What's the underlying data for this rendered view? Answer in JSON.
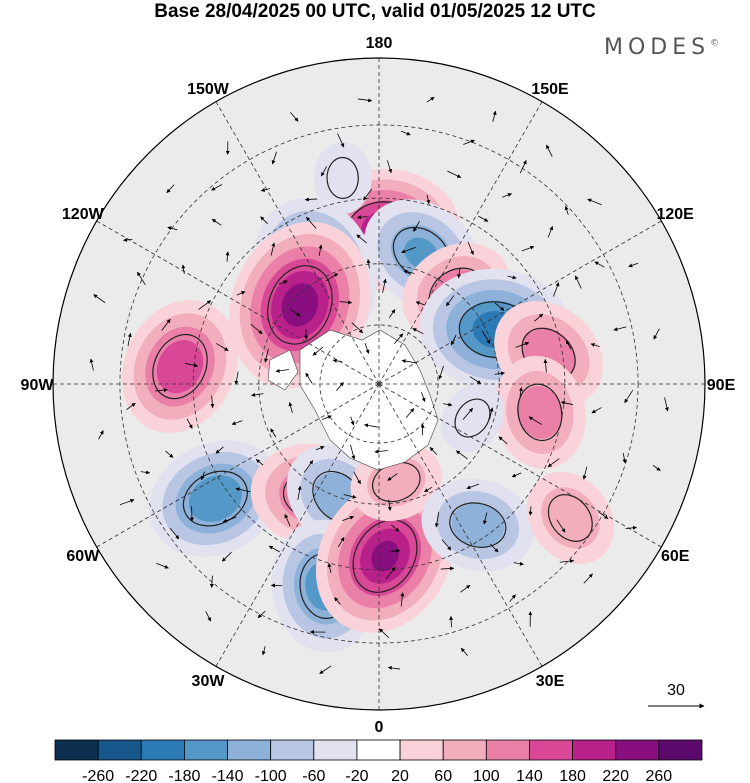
{
  "header": {
    "title": "Base 28/04/2025 00 UTC, valid 01/05/2025 12 UTC",
    "brand": "MODES",
    "brand_mark": "©"
  },
  "map": {
    "projection": "north-polar-stereographic",
    "longitude_labels": [
      {
        "text": "180",
        "lon": 180
      },
      {
        "text": "150E",
        "lon": 150
      },
      {
        "text": "120E",
        "lon": 120
      },
      {
        "text": "90E",
        "lon": 90
      },
      {
        "text": "60E",
        "lon": 60
      },
      {
        "text": "30E",
        "lon": 30
      },
      {
        "text": "0",
        "lon": 0
      },
      {
        "text": "30W",
        "lon": -30
      },
      {
        "text": "60W",
        "lon": -60
      },
      {
        "text": "90W",
        "lon": -90
      },
      {
        "text": "120W",
        "lon": -120
      },
      {
        "text": "150W",
        "lon": -150
      }
    ],
    "latitude_circles": [
      30,
      45,
      60,
      75
    ],
    "vector_reference": "30",
    "anomaly_centers": [
      {
        "lon": 178,
        "lat": 52,
        "value": 200
      },
      {
        "lon": 162,
        "lat": 56,
        "value": -140
      },
      {
        "lon": -150,
        "lat": 58,
        "value": -200
      },
      {
        "lon": -135,
        "lat": 62,
        "value": 240
      },
      {
        "lon": 140,
        "lat": 60,
        "value": 120
      },
      {
        "lon": 115,
        "lat": 58,
        "value": -200
      },
      {
        "lon": 100,
        "lat": 48,
        "value": 130
      },
      {
        "lon": 80,
        "lat": 50,
        "value": 120
      },
      {
        "lon": -95,
        "lat": 42,
        "value": 170
      },
      {
        "lon": -55,
        "lat": 42,
        "value": -170
      },
      {
        "lon": -30,
        "lat": 58,
        "value": 150
      },
      {
        "lon": -20,
        "lat": 60,
        "value": -120
      },
      {
        "lon": -15,
        "lat": 40,
        "value": -160
      },
      {
        "lon": 2,
        "lat": 48,
        "value": 220
      },
      {
        "lon": 10,
        "lat": 65,
        "value": 80
      },
      {
        "lon": 35,
        "lat": 48,
        "value": -120
      },
      {
        "lon": 55,
        "lat": 35,
        "value": 90
      },
      {
        "lon": -170,
        "lat": 40,
        "value": -40
      },
      {
        "lon": 70,
        "lat": 65,
        "value": -40
      }
    ]
  },
  "colorbar": {
    "ticks": [
      "-260",
      "-220",
      "-180",
      "-140",
      "-100",
      "-60",
      "-20",
      "20",
      "60",
      "100",
      "140",
      "180",
      "220",
      "260"
    ],
    "colors": [
      "#0d2f50",
      "#16568a",
      "#2b7ab5",
      "#5498c8",
      "#8db1d9",
      "#b8c6e3",
      "#e2e1ef",
      "#ffffff",
      "#f9d3d9",
      "#f2aebd",
      "#ea80a7",
      "#d84896",
      "#b8208a",
      "#890f80",
      "#5b0a6b"
    ]
  }
}
